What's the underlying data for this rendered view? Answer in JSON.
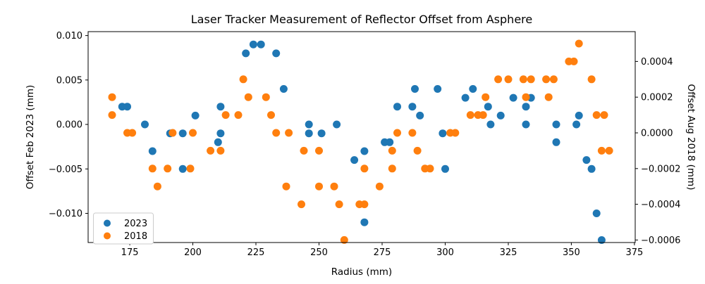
{
  "chart_data": {
    "type": "scatter",
    "title": "Laser Tracker Measurement of Reflector Offset from Asphere",
    "xlabel": "Radius (mm)",
    "ylabel_left": "Offset Feb 2023 (mm)",
    "ylabel_right": "Offset Aug 2018 (mm)",
    "grid": false,
    "legend_position": "lower left",
    "xlim": [
      158.5,
      375.3
    ],
    "ylim_left": [
      -0.01328,
      0.01044
    ],
    "ylim_right": [
      -0.000614,
      0.000567
    ],
    "x_ticks": {
      "values": [
        175,
        200,
        225,
        250,
        275,
        300,
        325,
        350,
        375
      ],
      "labels": [
        "175",
        "200",
        "225",
        "250",
        "275",
        "300",
        "325",
        "350",
        "375"
      ]
    },
    "y_ticks_left": {
      "values": [
        0.01,
        0.005,
        0.0,
        -0.005,
        -0.01
      ],
      "labels": [
        "0.010",
        "0.005",
        "0.000",
        "−0.005",
        "−0.010"
      ]
    },
    "y_ticks_right": {
      "values": [
        0.0004,
        0.0002,
        0.0,
        -0.0002,
        -0.0004,
        -0.0006
      ],
      "labels": [
        "0.0004",
        "0.0002",
        "0.0000",
        "−0.0002",
        "−0.0004",
        "−0.0006"
      ]
    },
    "legend": {
      "items": [
        {
          "label": "2023",
          "color": "#1f77b4"
        },
        {
          "label": "2018",
          "color": "#ff7f0e"
        }
      ]
    },
    "series": [
      {
        "name": "2023",
        "axis": "left",
        "color": "#1f77b4",
        "marker_radius": 5.5,
        "points": [
          [
            172,
            0.002
          ],
          [
            174,
            0.002
          ],
          [
            181,
            0.0
          ],
          [
            184,
            -0.003
          ],
          [
            191,
            -0.001
          ],
          [
            196,
            -0.001
          ],
          [
            196,
            -0.005
          ],
          [
            201,
            0.001
          ],
          [
            210,
            -0.002
          ],
          [
            211,
            0.002
          ],
          [
            211,
            -0.001
          ],
          [
            221,
            0.008
          ],
          [
            224,
            0.009
          ],
          [
            227,
            0.009
          ],
          [
            233,
            0.008
          ],
          [
            236,
            0.004
          ],
          [
            246,
            0.0
          ],
          [
            246,
            -0.001
          ],
          [
            251,
            -0.001
          ],
          [
            257,
            0.0
          ],
          [
            264,
            -0.004
          ],
          [
            268,
            -0.003
          ],
          [
            268,
            -0.011
          ],
          [
            276,
            -0.002
          ],
          [
            278,
            -0.002
          ],
          [
            281,
            0.002
          ],
          [
            287,
            0.002
          ],
          [
            288,
            0.004
          ],
          [
            290,
            0.001
          ],
          [
            297,
            0.004
          ],
          [
            299,
            -0.001
          ],
          [
            300,
            -0.005
          ],
          [
            308,
            0.003
          ],
          [
            311,
            0.004
          ],
          [
            317,
            0.002
          ],
          [
            318,
            0.0
          ],
          [
            322,
            0.001
          ],
          [
            327,
            0.003
          ],
          [
            332,
            0.002
          ],
          [
            332,
            0.0
          ],
          [
            334,
            0.003
          ],
          [
            344,
            0.0
          ],
          [
            344,
            -0.002
          ],
          [
            352,
            0.0
          ],
          [
            353,
            0.001
          ],
          [
            356,
            -0.004
          ],
          [
            358,
            -0.005
          ],
          [
            360,
            -0.01
          ],
          [
            362,
            -0.013
          ]
        ]
      },
      {
        "name": "2018",
        "axis": "right",
        "color": "#ff7f0e",
        "marker_radius": 5.5,
        "points": [
          [
            168,
            0.0002
          ],
          [
            168,
            0.0001
          ],
          [
            174,
            0.0
          ],
          [
            176,
            0.0
          ],
          [
            184,
            -0.0002
          ],
          [
            186,
            -0.0003
          ],
          [
            190,
            -0.0002
          ],
          [
            192,
            0.0
          ],
          [
            199,
            -0.0002
          ],
          [
            200,
            0.0
          ],
          [
            207,
            -0.0001
          ],
          [
            211,
            -0.0001
          ],
          [
            213,
            0.0001
          ],
          [
            218,
            0.0001
          ],
          [
            220,
            0.0003
          ],
          [
            222,
            0.0002
          ],
          [
            229,
            0.0002
          ],
          [
            231,
            0.0001
          ],
          [
            233,
            0.0
          ],
          [
            237,
            -0.0003
          ],
          [
            238,
            0.0
          ],
          [
            243,
            -0.0004
          ],
          [
            244,
            -0.0001
          ],
          [
            250,
            -0.0001
          ],
          [
            250,
            -0.0003
          ],
          [
            256,
            -0.0003
          ],
          [
            258,
            -0.0004
          ],
          [
            260,
            -0.0006
          ],
          [
            266,
            -0.0004
          ],
          [
            268,
            -0.0004
          ],
          [
            268,
            -0.0002
          ],
          [
            274,
            -0.0003
          ],
          [
            279,
            -0.0001
          ],
          [
            279,
            -0.0002
          ],
          [
            281,
            0.0
          ],
          [
            287,
            0.0
          ],
          [
            289,
            -0.0001
          ],
          [
            292,
            -0.0002
          ],
          [
            294,
            -0.0002
          ],
          [
            302,
            0.0
          ],
          [
            304,
            0.0
          ],
          [
            310,
            0.0001
          ],
          [
            313,
            0.0001
          ],
          [
            315,
            0.0001
          ],
          [
            316,
            0.0002
          ],
          [
            321,
            0.0003
          ],
          [
            325,
            0.0003
          ],
          [
            331,
            0.0003
          ],
          [
            332,
            0.0002
          ],
          [
            334,
            0.0003
          ],
          [
            340,
            0.0003
          ],
          [
            341,
            0.0002
          ],
          [
            343,
            0.0003
          ],
          [
            349,
            0.0004
          ],
          [
            351,
            0.0004
          ],
          [
            353,
            0.0005
          ],
          [
            358,
            0.0003
          ],
          [
            360,
            0.0001
          ],
          [
            363,
            0.0001
          ],
          [
            362,
            -0.0001
          ],
          [
            365,
            -0.0001
          ]
        ]
      }
    ]
  }
}
